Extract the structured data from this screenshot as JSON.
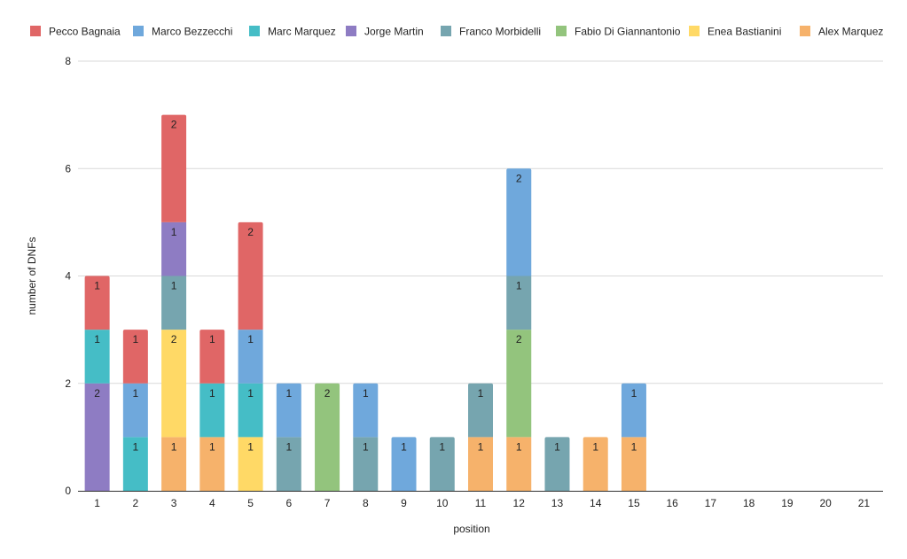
{
  "chart_data": {
    "type": "bar",
    "stacked": true,
    "title": "",
    "xlabel": "position",
    "ylabel": "number of DNFs",
    "ylim": [
      0,
      8
    ],
    "yticks": [
      "0",
      "2",
      "4",
      "6",
      "8"
    ],
    "grid": true,
    "legend_position": "top",
    "categories": [
      "1",
      "2",
      "3",
      "4",
      "5",
      "6",
      "7",
      "8",
      "9",
      "10",
      "11",
      "12",
      "13",
      "14",
      "15",
      "16",
      "17",
      "18",
      "19",
      "20",
      "21"
    ],
    "legend_order": [
      "Pecco Bagnaia",
      "Marco Bezzecchi",
      "Marc Marquez",
      "Jorge Martin",
      "Franco Morbidelli",
      "Fabio Di Giannantonio",
      "Enea Bastianini",
      "Alex Marquez"
    ],
    "series": [
      {
        "name": "Alex Marquez",
        "color": "#f6b26b",
        "values": [
          0,
          0,
          1,
          1,
          0,
          0,
          0,
          0,
          0,
          0,
          1,
          1,
          0,
          1,
          1,
          0,
          0,
          0,
          0,
          0,
          0
        ]
      },
      {
        "name": "Enea Bastianini",
        "color": "#ffd966",
        "values": [
          0,
          0,
          2,
          0,
          1,
          0,
          0,
          0,
          0,
          0,
          0,
          0,
          0,
          0,
          0,
          0,
          0,
          0,
          0,
          0,
          0
        ]
      },
      {
        "name": "Fabio Di Giannantonio",
        "color": "#93c47d",
        "values": [
          0,
          0,
          0,
          0,
          0,
          0,
          2,
          0,
          0,
          0,
          0,
          2,
          0,
          0,
          0,
          0,
          0,
          0,
          0,
          0,
          0
        ]
      },
      {
        "name": "Franco Morbidelli",
        "color": "#76a5af",
        "values": [
          0,
          0,
          1,
          0,
          0,
          1,
          0,
          1,
          0,
          1,
          1,
          1,
          1,
          0,
          0,
          0,
          0,
          0,
          0,
          0,
          0
        ]
      },
      {
        "name": "Jorge Martin",
        "color": "#8e7cc3",
        "values": [
          2,
          0,
          1,
          0,
          0,
          0,
          0,
          0,
          0,
          0,
          0,
          0,
          0,
          0,
          0,
          0,
          0,
          0,
          0,
          0,
          0
        ]
      },
      {
        "name": "Marc Marquez",
        "color": "#45bdc6",
        "values": [
          1,
          1,
          0,
          1,
          1,
          0,
          0,
          0,
          0,
          0,
          0,
          0,
          0,
          0,
          0,
          0,
          0,
          0,
          0,
          0,
          0
        ]
      },
      {
        "name": "Marco Bezzecchi",
        "color": "#6fa8dc",
        "values": [
          0,
          1,
          0,
          0,
          1,
          1,
          0,
          1,
          1,
          0,
          0,
          2,
          0,
          0,
          1,
          0,
          0,
          0,
          0,
          0,
          0
        ]
      },
      {
        "name": "Pecco Bagnaia",
        "color": "#e06666",
        "values": [
          1,
          1,
          2,
          1,
          2,
          0,
          0,
          0,
          0,
          0,
          0,
          0,
          0,
          0,
          0,
          0,
          0,
          0,
          0,
          0,
          0
        ]
      }
    ]
  }
}
